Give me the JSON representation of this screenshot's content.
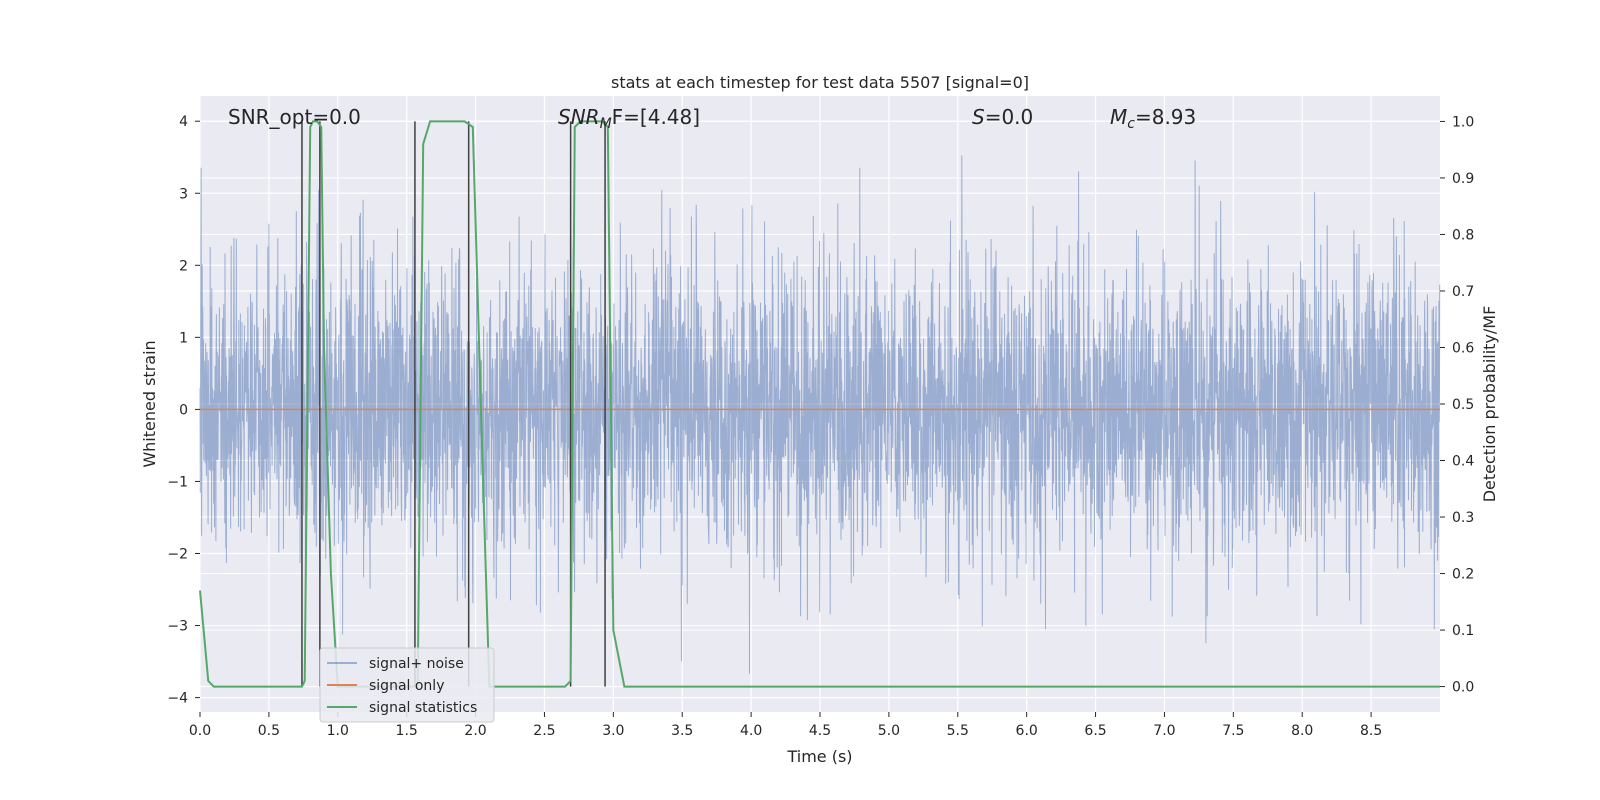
{
  "chart_data": {
    "type": "line",
    "title": "stats at each timestep for test data 5507 [signal=0]",
    "xlabel": "Time (s)",
    "ylabel": "Whitened strain",
    "y2label": "Detection probability/MF",
    "xlim": [
      0.0,
      9.0
    ],
    "ylim": [
      -4.2,
      4.35
    ],
    "y2lim": [
      -0.045,
      1.045
    ],
    "xticks": [
      "0.0",
      "0.5",
      "1.0",
      "1.5",
      "2.0",
      "2.5",
      "3.0",
      "3.5",
      "4.0",
      "4.5",
      "5.0",
      "5.5",
      "6.0",
      "6.5",
      "7.0",
      "7.5",
      "8.0",
      "8.5"
    ],
    "yticks": [
      "−4",
      "−3",
      "−2",
      "−1",
      "0",
      "1",
      "2",
      "3",
      "4"
    ],
    "y2ticks": [
      "0.0",
      "0.1",
      "0.2",
      "0.3",
      "0.4",
      "0.5",
      "0.6",
      "0.7",
      "0.8",
      "0.9",
      "1.0"
    ],
    "grid": true,
    "legend_position": "lower-left",
    "annotations": {
      "snr_opt": "SNR_opt=0.0",
      "snr_mf_main": "SNR",
      "snr_mf_sub": "M",
      "snr_mf_rest": "F=[4.48]",
      "s_italic": "S",
      "s_rest": "=0.0",
      "mc_main": "M",
      "mc_sub": "c",
      "mc_rest": "=8.93"
    },
    "series": [
      {
        "name": "signal+ noise",
        "color": "#4c72b0",
        "alpha": 0.5,
        "description_values": {
          "noise_sigma": 1.0,
          "sample_rate_hz": 512,
          "x_range": [
            0.0,
            9.0
          ]
        }
      },
      {
        "name": "signal only",
        "color": "#dd8452",
        "x": [
          0.0,
          9.0
        ],
        "y": [
          0.0,
          0.0
        ]
      },
      {
        "name": "signal statistics",
        "color": "#55a868",
        "axis": "right",
        "x": [
          0.0,
          0.06,
          0.1,
          0.74,
          0.76,
          0.8,
          0.82,
          0.85,
          0.88,
          0.9,
          0.95,
          1.0,
          1.58,
          1.62,
          1.67,
          1.92,
          1.98,
          2.05,
          2.1,
          2.65,
          2.69,
          2.72,
          2.76,
          2.92,
          2.96,
          3.0,
          3.08,
          9.0
        ],
        "y": [
          0.17,
          0.01,
          0.0,
          0.0,
          0.01,
          0.99,
          1.0,
          1.0,
          0.99,
          0.6,
          0.2,
          0.0,
          0.0,
          0.96,
          1.0,
          1.0,
          0.99,
          0.4,
          0.0,
          0.0,
          0.01,
          0.99,
          1.0,
          1.0,
          0.99,
          0.1,
          0.0,
          0.0
        ]
      }
    ],
    "vertical_markers": {
      "color": "#404040",
      "x": [
        0.74,
        0.87,
        1.56,
        1.95,
        2.69,
        2.94
      ],
      "y2_range": [
        0.0,
        1.0
      ]
    }
  }
}
